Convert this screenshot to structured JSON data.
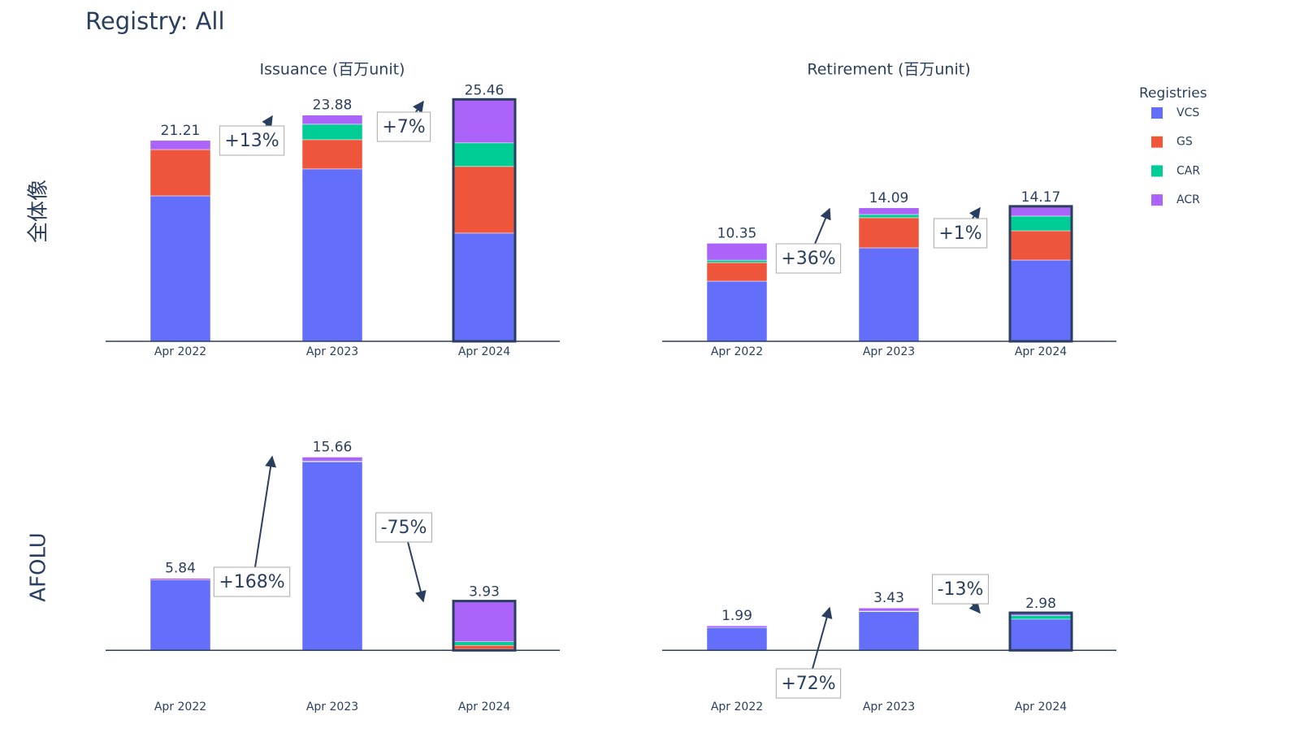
{
  "title": "Registry: All",
  "row_labels": [
    "全体像",
    "AFOLU"
  ],
  "legend_title": "Registries",
  "chart_data": [
    {
      "type": "bar",
      "stacked": true,
      "title": "Issuance (百万unit)",
      "categories": [
        "Apr 2022",
        "Apr 2023",
        "Apr 2024"
      ],
      "series": [
        {
          "name": "VCS",
          "color": "#636efa",
          "values": [
            15.36,
            18.2,
            11.42
          ]
        },
        {
          "name": "GS",
          "color": "#ef553b",
          "values": [
            4.89,
            3.09,
            7.04
          ]
        },
        {
          "name": "CAR",
          "color": "#00cc96",
          "values": [
            0,
            1.63,
            2.49
          ]
        },
        {
          "name": "ACR",
          "color": "#ab63fa",
          "values": [
            0.96,
            0.96,
            4.51
          ]
        }
      ],
      "totals": [
        21.21,
        23.88,
        25.46
      ],
      "annotations": [
        "+13%",
        "+7%"
      ],
      "ylim": [
        0,
        26.6
      ],
      "highlight_last": true
    },
    {
      "type": "bar",
      "stacked": true,
      "title": "Retirement (百万unit)",
      "categories": [
        "Apr 2022",
        "Apr 2023",
        "Apr 2024"
      ],
      "series": [
        {
          "name": "VCS",
          "color": "#636efa",
          "values": [
            6.35,
            9.87,
            8.58
          ]
        },
        {
          "name": "GS",
          "color": "#ef553b",
          "values": [
            1.97,
            3.18,
            3.09
          ]
        },
        {
          "name": "CAR",
          "color": "#00cc96",
          "values": [
            0.25,
            0.34,
            1.55
          ]
        },
        {
          "name": "ACR",
          "color": "#ab63fa",
          "values": [
            1.78,
            0.7,
            0.95
          ]
        }
      ],
      "totals": [
        10.35,
        14.09,
        14.17
      ],
      "annotations": [
        "+36%",
        "+1%"
      ],
      "ylim": [
        0,
        26.6
      ],
      "highlight_last": true
    },
    {
      "type": "bar",
      "stacked": true,
      "categories": [
        "Apr 2022",
        "Apr 2023",
        "Apr 2024"
      ],
      "series": [
        {
          "name": "VCS",
          "color": "#636efa",
          "values": [
            5.7,
            15.28,
            0.1
          ]
        },
        {
          "name": "GS",
          "color": "#ef553b",
          "values": [
            0,
            0,
            0.3
          ]
        },
        {
          "name": "CAR",
          "color": "#00cc96",
          "values": [
            0,
            0.05,
            0.3
          ]
        },
        {
          "name": "ACR",
          "color": "#ab63fa",
          "values": [
            0.14,
            0.33,
            3.23
          ]
        }
      ],
      "totals": [
        5.84,
        15.66,
        3.93
      ],
      "annotations": [
        "+168%",
        "-75%"
      ],
      "ylim": [
        -3.8,
        17.8
      ],
      "highlight_last": true
    },
    {
      "type": "bar",
      "stacked": true,
      "categories": [
        "Apr 2022",
        "Apr 2023",
        "Apr 2024"
      ],
      "series": [
        {
          "name": "VCS",
          "color": "#636efa",
          "values": [
            1.85,
            3.13,
            2.53
          ]
        },
        {
          "name": "GS",
          "color": "#ef553b",
          "values": [
            0,
            0,
            0
          ]
        },
        {
          "name": "CAR",
          "color": "#00cc96",
          "values": [
            0,
            0.05,
            0.3
          ]
        },
        {
          "name": "ACR",
          "color": "#ab63fa",
          "values": [
            0.14,
            0.25,
            0.15
          ]
        }
      ],
      "totals": [
        1.99,
        3.43,
        2.98
      ],
      "annotations": [
        "+72%",
        "-13%"
      ],
      "ylim": [
        -3.8,
        17.8
      ],
      "highlight_last": true
    }
  ]
}
